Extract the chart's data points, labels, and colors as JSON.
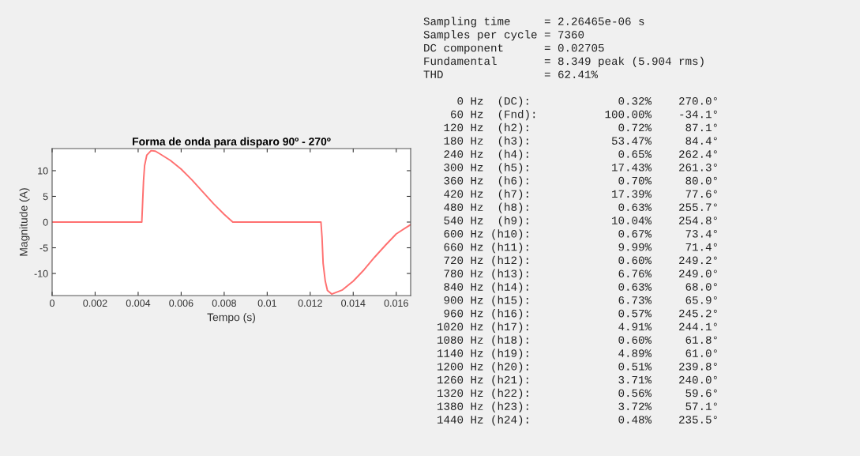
{
  "chart_data": [
    {
      "type": "line",
      "title": "Forma de onda para disparo 90º - 270º",
      "xlabel": "Tempo (s)",
      "ylabel": "Magnitude (A)",
      "x": [
        0,
        0.00417,
        0.0042,
        0.00425,
        0.0043,
        0.0044,
        0.0046,
        0.0048,
        0.005,
        0.0055,
        0.006,
        0.0065,
        0.007,
        0.0075,
        0.008,
        0.0084,
        0.0125,
        0.01255,
        0.0126,
        0.0127,
        0.0128,
        0.013,
        0.0135,
        0.014,
        0.0145,
        0.015,
        0.0155,
        0.016,
        0.01667
      ],
      "series": [
        {
          "color": "#ff7070",
          "values": [
            0,
            0,
            3,
            8,
            11,
            13,
            13.9,
            13.8,
            13.3,
            12,
            10.3,
            8.2,
            5.9,
            3.6,
            1.5,
            0,
            0,
            -3,
            -8,
            -11.5,
            -13.3,
            -14,
            -13.2,
            -11.5,
            -9.3,
            -6.8,
            -4.5,
            -2.3,
            -0.5
          ]
        }
      ],
      "xlim": [
        0,
        0.01667
      ],
      "xticks": [
        0,
        0.002,
        0.004,
        0.006,
        0.008,
        0.01,
        0.012,
        0.014,
        0.016
      ],
      "ylim": [
        -14.3,
        14.3
      ],
      "yticks": [
        -10,
        -5,
        0,
        5,
        10
      ],
      "grid": false,
      "legend": false
    },
    {
      "type": "other",
      "annotations": [
        "Sampling time     = 2.26465e-06 s",
        "Samples per cycle = 7360",
        "DC component      = 0.02705",
        "Fundamental       = 8.349 peak (5.904 rms)",
        "THD               = 62.41%",
        "     0 Hz  (DC):             0.32%    270.0°",
        "    60 Hz  (Fnd):          100.00%    -34.1°",
        "   120 Hz  (h2):             0.72%     87.1°",
        "   180 Hz  (h3):            53.47%     84.4°",
        "   240 Hz  (h4):             0.65%    262.4°",
        "   300 Hz  (h5):            17.43%    261.3°",
        "   360 Hz  (h6):             0.70%     80.0°",
        "   420 Hz  (h7):            17.39%     77.6°",
        "   480 Hz  (h8):             0.63%    255.7°",
        "   540 Hz  (h9):            10.04%    254.8°",
        "   600 Hz (h10):             0.67%     73.4°",
        "   660 Hz (h11):             9.99%     71.4°",
        "   720 Hz (h12):             0.60%    249.2°",
        "   780 Hz (h13):             6.76%    249.0°",
        "   840 Hz (h14):             0.63%     68.0°",
        "   900 Hz (h15):             6.73%     65.9°",
        "   960 Hz (h16):             0.57%    245.2°",
        "  1020 Hz (h17):             4.91%    244.1°",
        "  1080 Hz (h18):             0.60%     61.8°",
        "  1140 Hz (h19):             4.89%     61.0°",
        "  1200 Hz (h20):             0.51%    239.8°",
        "  1260 Hz (h21):             3.71%    240.0°",
        "  1320 Hz (h22):             0.56%     59.6°",
        "  1380 Hz (h23):             3.72%     57.1°",
        "  1440 Hz (h24):             0.48%    235.5°"
      ]
    }
  ]
}
